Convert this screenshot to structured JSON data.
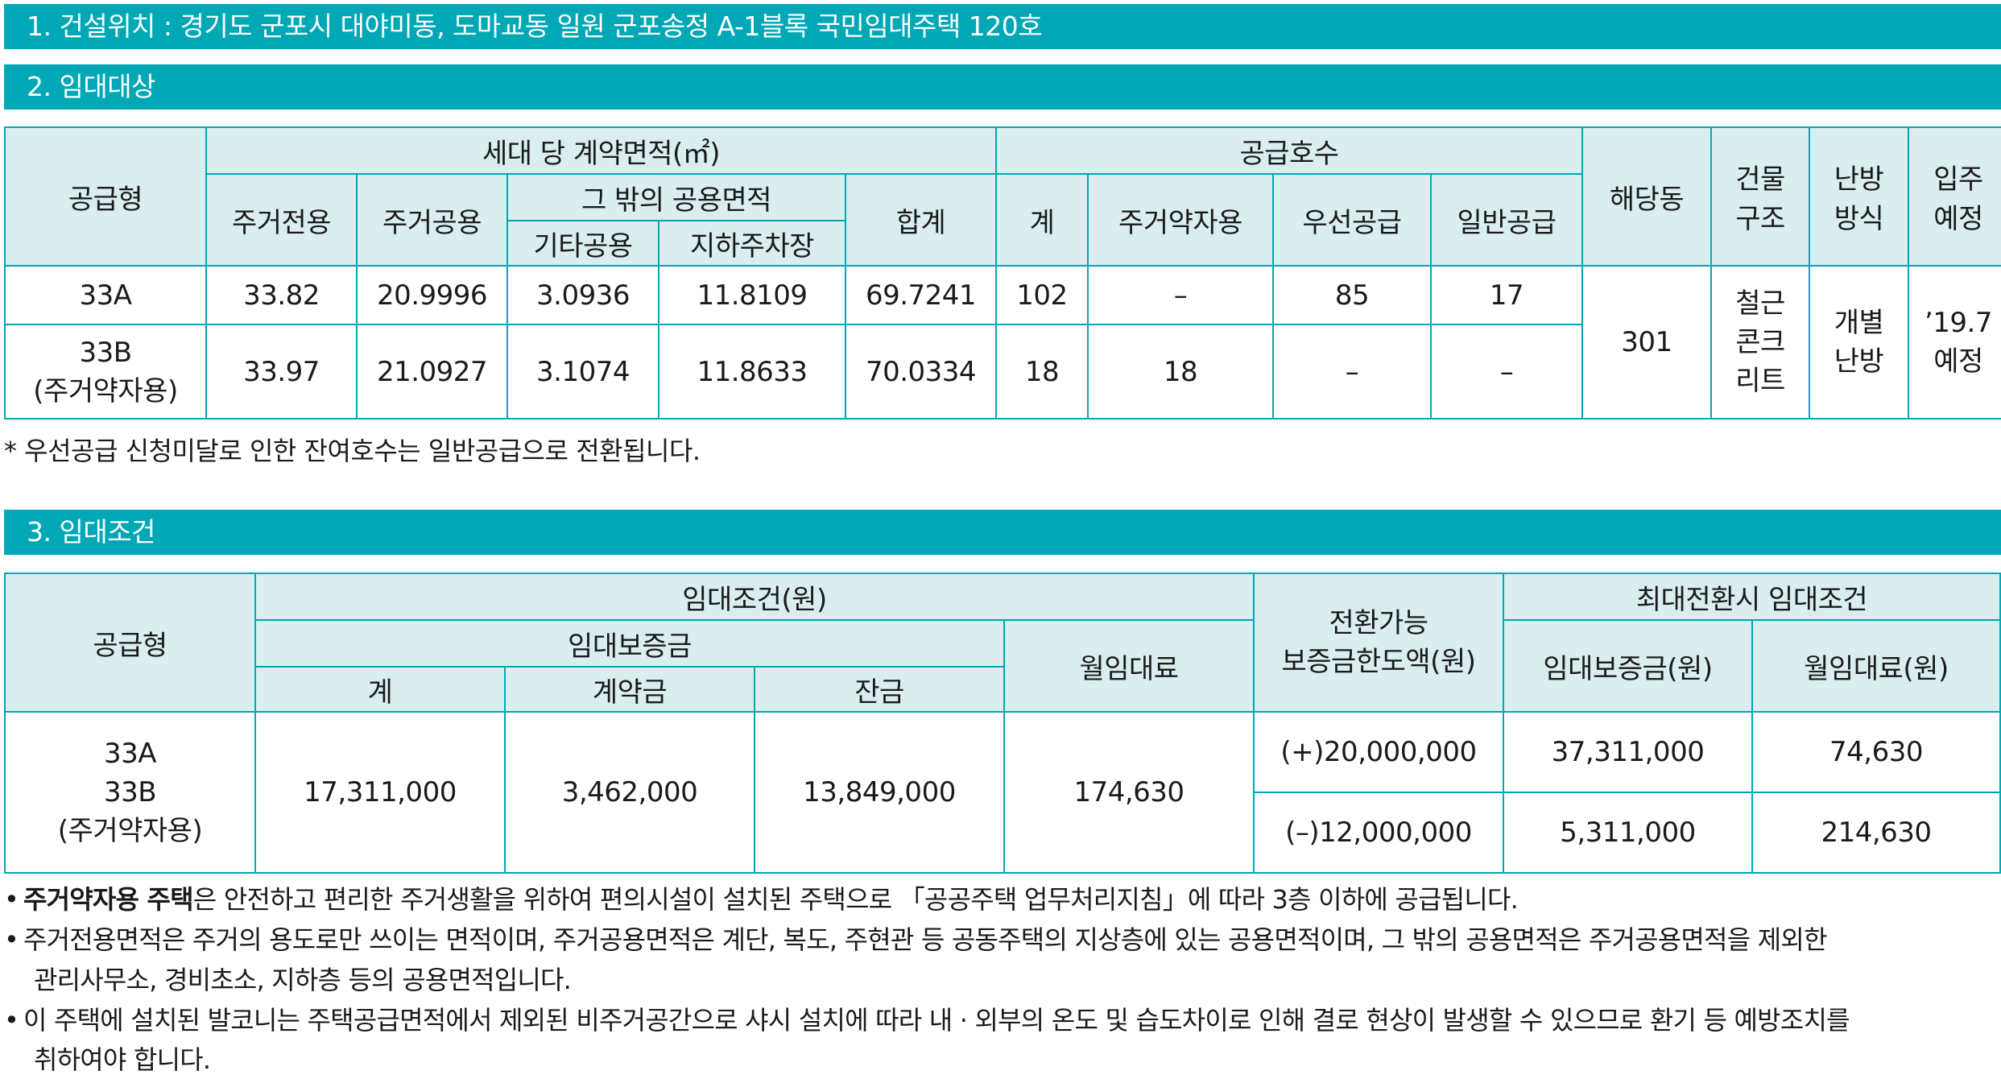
{
  "section1": {
    "title": "1. 건설위치 : 경기도 군포시 대야미동, 도마교동 일원 군포송정 A-1블록 국민임대주택 120호"
  },
  "section2": {
    "title": "2. 임대대상",
    "headers": {
      "type": "공급형",
      "area_group": "세대 당 계약면적(㎡)",
      "exclusive": "주거전용",
      "common": "주거공용",
      "other_common": "그 밖의 공용면적",
      "etc_common": "기타공용",
      "underground_parking": "지하주차장",
      "total": "합계",
      "supply_group": "공급호수",
      "supply_total": "계",
      "supply_disabled": "주거약자용",
      "supply_priority": "우선공급",
      "supply_general": "일반공급",
      "building": "해당동",
      "structure": "건물 구조",
      "structure_l1": "건물",
      "structure_l2": "구조",
      "heating_l1": "난방",
      "heating_l2": "방식",
      "movein_l1": "입주",
      "movein_l2": "예정"
    },
    "rows": [
      {
        "type_l1": "33A",
        "type_l2": "",
        "exclusive": "33.82",
        "common": "20.9996",
        "etc_common": "3.0936",
        "parking": "11.8109",
        "total": "69.7241",
        "supply_total": "102",
        "supply_disabled": "–",
        "supply_priority": "85",
        "supply_general": "17"
      },
      {
        "type_l1": "33B",
        "type_l2": "(주거약자용)",
        "exclusive": "33.97",
        "common": "21.0927",
        "etc_common": "3.1074",
        "parking": "11.8633",
        "total": "70.0334",
        "supply_total": "18",
        "supply_disabled": "18",
        "supply_priority": "–",
        "supply_general": "–"
      }
    ],
    "shared": {
      "building": "301",
      "structure_l1": "철근",
      "structure_l2": "콘크",
      "structure_l3": "리트",
      "heating_l1": "개별",
      "heating_l2": "난방",
      "movein_l1": "’19.7",
      "movein_l2": "예정"
    },
    "note": "* 우선공급 신청미달로 인한 잔여호수는 일반공급으로 전환됩니다."
  },
  "section3": {
    "title": "3. 임대조건",
    "headers": {
      "type": "공급형",
      "conditions": "임대조건(원)",
      "deposit": "임대보증금",
      "deposit_total": "계",
      "contract_money": "계약금",
      "balance": "잔금",
      "monthly_rent": "월임대료",
      "convertible_l1": "전환가능",
      "convertible_l2": "보증금한도액(원)",
      "max_group": "최대전환시 임대조건",
      "max_deposit": "임대보증금(원)",
      "max_rent": "월임대료(원)"
    },
    "row": {
      "type_l1": "33A",
      "type_l2": "33B",
      "type_l3": "(주거약자용)",
      "deposit_total": "17,311,000",
      "contract_money": "3,462,000",
      "balance": "13,849,000",
      "monthly_rent": "174,630",
      "conv_plus": "(+)20,000,000",
      "max_deposit_plus": "37,311,000",
      "max_rent_plus": "74,630",
      "conv_minus": "(–)12,000,000",
      "max_deposit_minus": "5,311,000",
      "max_rent_minus": "214,630"
    }
  },
  "bullets": {
    "b1_bold": "주거약자용 주택",
    "b1_rest": "은 안전하고 편리한 주거생활을 위하여 편의시설이 설치된 주택으로 「공공주택 업무처리지침」에 따라 3층 이하에 공급됩니다.",
    "b2_l1": "주거전용면적은 주거의 용도로만 쓰이는 면적이며, 주거공용면적은 계단, 복도, 주현관 등 공동주택의 지상층에 있는 공용면적이며, 그 밖의 공용면적은 주거공용면적을 제외한",
    "b2_l2": "관리사무소, 경비초소, 지하층 등의 공용면적입니다.",
    "b3_l1": "이 주택에 설치된 발코니는 주택공급면적에서 제외된 비주거공간으로 샤시 설치에 따라 내 · 외부의 온도 및 습도차이로 인해 결로 현상이 발생할 수 있으므로 환기 등 예방조치를",
    "b3_l2": "취하여야 합니다."
  }
}
